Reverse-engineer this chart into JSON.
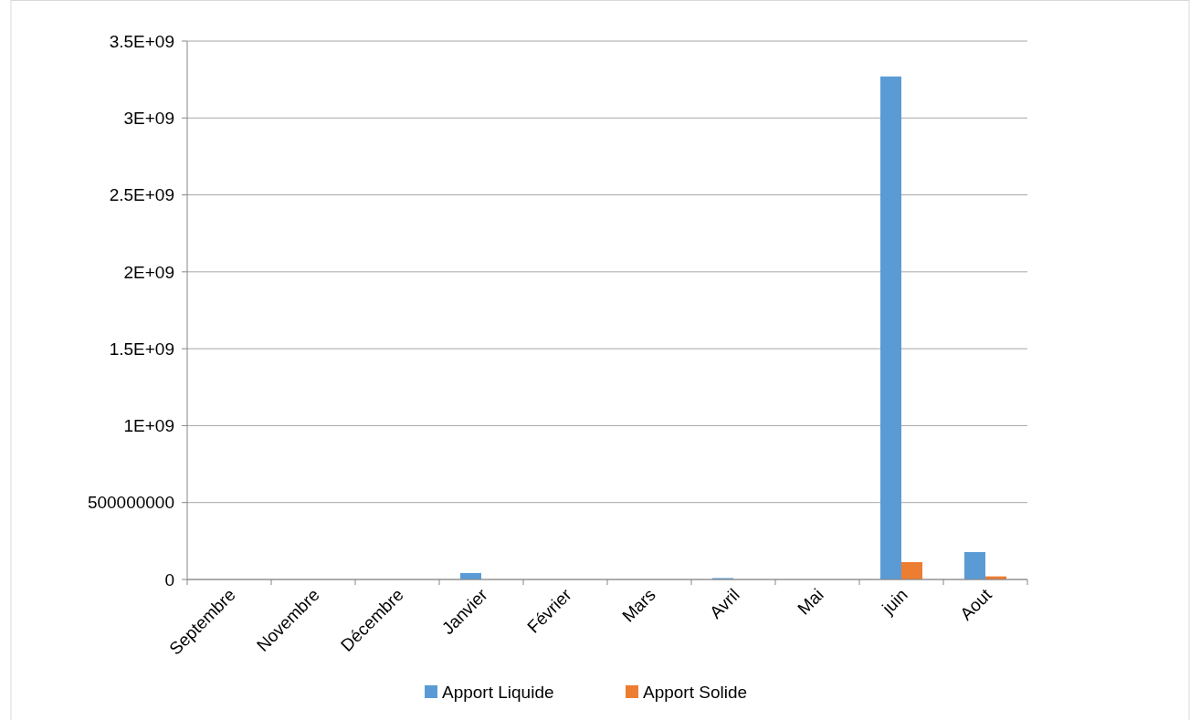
{
  "chart_data": {
    "type": "bar",
    "categories": [
      "Septembre",
      "Novembre",
      "Décembre",
      "Janvier",
      "Février",
      "Mars",
      "Avril",
      "Mai",
      "juin",
      "Aout"
    ],
    "series": [
      {
        "name": "Apport Liquide",
        "color": "#5b9bd5",
        "values": [
          0,
          0,
          0,
          42000000,
          0,
          0,
          9000000,
          0,
          3270000000,
          178000000
        ]
      },
      {
        "name": "Apport Solide",
        "color": "#ed7d31",
        "values": [
          0,
          0,
          0,
          0,
          0,
          0,
          0,
          0,
          113000000,
          20000000
        ]
      }
    ],
    "ylim": [
      0,
      3500000000
    ],
    "yticks": [
      0,
      500000000,
      {
        "value": 1000000000,
        "label": "1E+09"
      },
      {
        "value": 1500000000,
        "label": "1.5E+09"
      },
      {
        "value": 2000000000,
        "label": "2E+09"
      },
      {
        "value": 2500000000,
        "label": "2.5E+09"
      },
      {
        "value": 3000000000,
        "label": "3E+09"
      },
      {
        "value": 3500000000,
        "label": "3.5E+09"
      }
    ],
    "grid": "y",
    "legend": "bottom"
  }
}
